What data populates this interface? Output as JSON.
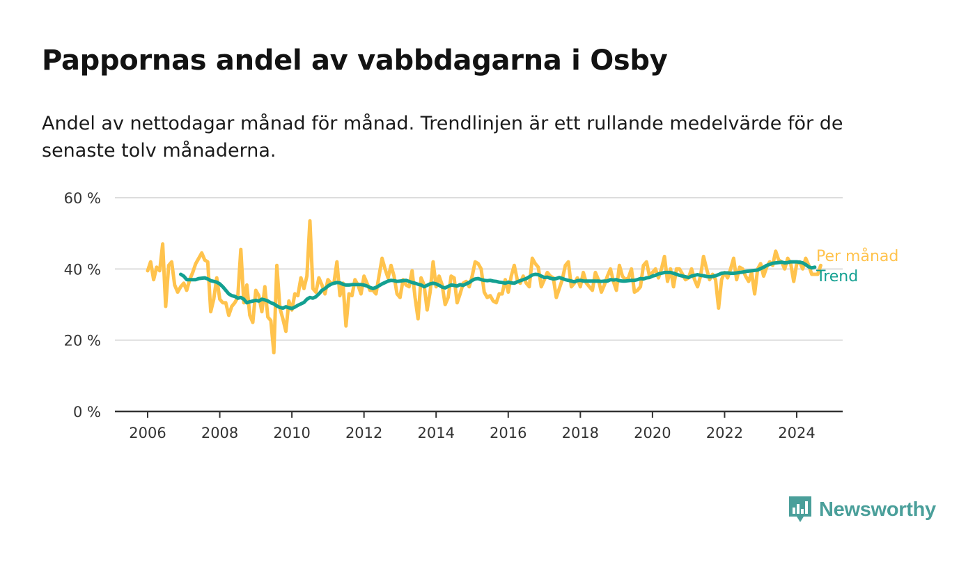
{
  "title": "Pappornas andel av vabbdagarna i Osby",
  "subtitle": "Andel av nettodagar månad för månad. Trendlinjen är ett rullande medelvärde för de senaste tolv månaderna.",
  "brand": {
    "name": "Newsworthy",
    "icon": "newsworthy-logo-icon"
  },
  "colors": {
    "monthly": "#ffc34d",
    "trend": "#13a091",
    "axis": "#333333",
    "grid": "#dddddd",
    "brand": "#4a9f9a"
  },
  "chart_data": {
    "type": "line",
    "title": "Pappornas andel av vabbdagarna i Osby",
    "subtitle": "Andel av nettodagar månad för månad. Trendlinjen är ett rullande medelvärde för de senaste tolv månaderna.",
    "xlabel": "",
    "ylabel": "",
    "xlim": [
      2005.1,
      2025.3
    ],
    "ylim": [
      0,
      60
    ],
    "grid": true,
    "legend_placement": "right-end",
    "x_ticks": [
      2006,
      2008,
      2010,
      2012,
      2014,
      2016,
      2018,
      2020,
      2022,
      2024
    ],
    "x_tick_labels": [
      "2006",
      "2008",
      "2010",
      "2012",
      "2014",
      "2016",
      "2018",
      "2020",
      "2022",
      "2024"
    ],
    "y_ticks": [
      0,
      20,
      40,
      60
    ],
    "y_tick_labels": [
      "0 %",
      "20 %",
      "40 %",
      "60 %"
    ],
    "series": [
      {
        "name": "Per månad",
        "color": "#ffc34d",
        "x_start": 2006.0,
        "x_step": 0.083333,
        "values": [
          39.5,
          42,
          37,
          40.5,
          39.5,
          47,
          29.5,
          41,
          42,
          35.5,
          33.5,
          35,
          36,
          34,
          37,
          39,
          41.5,
          43,
          44.5,
          42.5,
          42,
          28,
          31.5,
          37.5,
          31.5,
          30.5,
          30.5,
          27,
          29.5,
          30.5,
          32,
          45.5,
          30.5,
          35.5,
          27,
          25,
          34,
          32.5,
          28,
          35,
          26.5,
          25.5,
          16.5,
          41,
          29,
          26,
          22.5,
          31,
          28.5,
          33,
          32.5,
          37.5,
          34.5,
          38,
          53.5,
          34.5,
          33.5,
          37.5,
          35.5,
          33,
          37,
          36,
          36,
          42,
          32.5,
          36,
          24,
          33,
          32.5,
          37,
          35.5,
          33,
          38,
          36,
          34,
          34,
          33,
          38,
          43,
          40,
          37.5,
          41,
          38,
          33,
          32,
          37,
          35.5,
          35,
          39.5,
          32,
          26,
          37.5,
          35.5,
          28.5,
          33.5,
          42,
          35,
          38,
          35.5,
          30,
          32,
          38,
          37.5,
          30.5,
          33,
          36,
          36.5,
          35,
          38,
          42,
          41.5,
          40,
          33.5,
          32,
          32.5,
          31,
          30.5,
          33,
          33,
          37,
          33.5,
          38,
          41,
          37,
          36,
          38,
          36,
          35,
          43,
          41.5,
          40.5,
          35,
          37,
          39,
          38,
          37.5,
          32,
          34.5,
          37,
          41,
          42,
          35,
          36,
          37.5,
          35,
          39,
          36,
          35,
          34,
          39,
          37,
          33.5,
          35.5,
          38,
          40,
          36.5,
          34,
          41,
          38,
          37,
          37.5,
          40,
          33.5,
          34,
          35,
          41,
          42,
          38,
          39,
          40,
          37.5,
          40,
          43.5,
          36.5,
          40,
          35,
          40,
          40,
          38.5,
          37,
          37.5,
          40,
          37,
          35,
          38,
          43.5,
          40,
          37,
          38.5,
          37,
          29,
          37,
          39,
          37.5,
          40,
          43,
          37,
          40.5,
          40,
          38,
          36.5,
          39,
          33,
          40,
          41.5,
          38,
          40.5,
          42,
          41,
          45,
          42.5,
          42,
          40,
          43,
          41.5,
          36.5,
          41.5,
          42,
          40,
          43,
          41,
          38.5,
          38.5,
          38.5,
          41
        ]
      },
      {
        "name": "Trend",
        "color": "#13a091",
        "x_start": 2006.917,
        "x_step": 0.083333,
        "values": [
          38.5,
          38,
          37,
          37,
          37,
          37,
          37.3,
          37.4,
          37.5,
          37.2,
          36.7,
          36.5,
          36.3,
          35.8,
          35,
          34,
          33,
          32.5,
          32.3,
          31.8,
          32,
          31.5,
          30.5,
          30.8,
          31,
          31.2,
          31,
          31.5,
          31.3,
          31,
          30.5,
          30.2,
          29.6,
          29.2,
          29,
          29.4,
          29.1,
          28.9,
          29.3,
          29.8,
          30.2,
          30.6,
          31.5,
          32,
          31.8,
          32.2,
          33,
          34,
          34.5,
          35.2,
          35.7,
          36,
          36.2,
          36.1,
          35.7,
          35.5,
          35.5,
          35.6,
          35.6,
          35.6,
          35.6,
          35.5,
          35.2,
          34.8,
          34.5,
          34.8,
          35.3,
          35.8,
          36.2,
          36.6,
          36.8,
          36.7,
          36.5,
          36.6,
          36.7,
          36.8,
          36.5,
          36.2,
          36,
          35.7,
          35.5,
          35,
          35.4,
          35.8,
          36,
          35.8,
          35.4,
          34.9,
          34.7,
          35.1,
          35.5,
          35.4,
          35.2,
          35.6,
          35.4,
          35.8,
          36.2,
          36.8,
          37.2,
          37.3,
          37,
          36.8,
          36.7,
          36.8,
          36.6,
          36.5,
          36.3,
          36.2,
          36,
          36.3,
          36.1,
          36,
          36.4,
          36.7,
          37,
          37.3,
          37.8,
          38.3,
          38.5,
          38.4,
          38,
          37.6,
          37.7,
          37.4,
          37.2,
          37.3,
          37.6,
          37.3,
          37,
          36.8,
          36.6,
          36.4,
          36.7,
          36.8,
          36.6,
          36.6,
          36.6,
          36.6,
          36.6,
          36.6,
          36.5,
          36.6,
          36.6,
          37,
          36.9,
          37,
          36.7,
          36.6,
          36.6,
          36.7,
          36.8,
          36.8,
          37,
          37.3,
          37.2,
          37.5,
          37.6,
          38,
          38.2,
          38.6,
          38.8,
          39,
          39,
          39,
          38.8,
          38.5,
          38.2,
          38,
          37.8,
          37.6,
          38,
          38.2,
          38.4,
          38.2,
          38.1,
          37.9,
          37.8,
          37.9,
          38.1,
          38.4,
          38.8,
          38.9,
          38.9,
          38.8,
          38.8,
          38.9,
          39,
          39.1,
          39.3,
          39.4,
          39.5,
          39.6,
          39.7,
          40.1,
          40.5,
          41,
          41.3,
          41.6,
          41.7,
          41.8,
          41.9,
          41.7,
          41.8,
          42,
          42,
          42,
          41.9,
          41.7,
          41.2,
          40.6,
          40.3,
          40.5
        ]
      }
    ]
  }
}
